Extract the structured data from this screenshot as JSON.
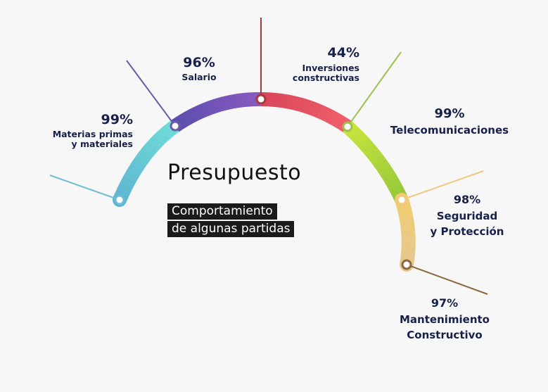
{
  "title": "Presupuesto",
  "subtitle_lines": [
    "Comportamiento",
    "de algunas partidas"
  ],
  "chart_data": {
    "type": "gauge-arc",
    "items": [
      {
        "value": "99%",
        "label": "Materias primas\ny materiales",
        "color": "#5fc6d4"
      },
      {
        "value": "96%",
        "label": "Salario",
        "color": "#6a4fb0"
      },
      {
        "value": "44%",
        "label": "Inversiones\nconstructivas",
        "color": "#c83a48"
      },
      {
        "value": "99%",
        "label": "Telecomunicaciones",
        "color": "#9fcd3a"
      },
      {
        "value": "98%",
        "label": "Seguridad\ny Protección",
        "color": "#f0c878"
      },
      {
        "value": "97%",
        "label": "Mantenimiento\nConstructivo",
        "color": "#8a6a3a"
      }
    ]
  }
}
